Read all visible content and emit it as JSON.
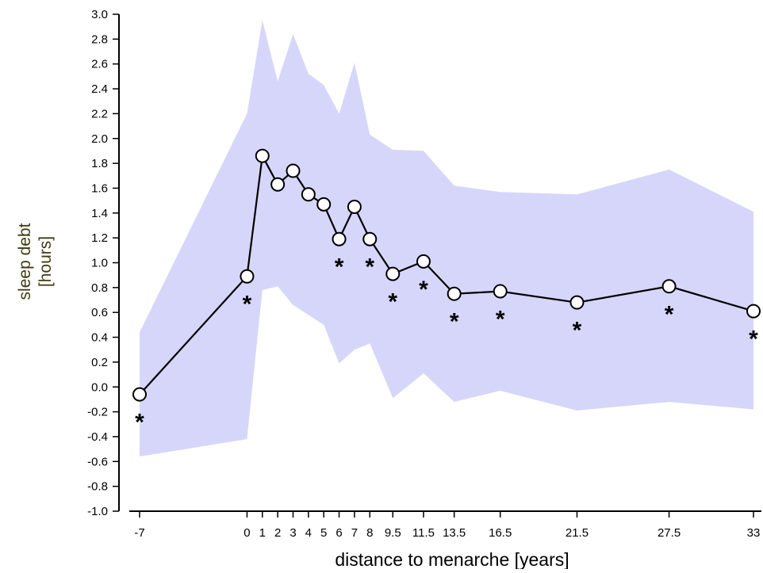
{
  "chart_data": {
    "type": "line",
    "title": "",
    "xlabel": "distance to menarche [years]",
    "ylabel_line1": "sleep debt",
    "ylabel_line2": "[hours]",
    "ylim": [
      -1.0,
      3.0
    ],
    "ytick_step": 0.2,
    "yticks": [
      "3.0",
      "2.8",
      "2.6",
      "2.4",
      "2.2",
      "2.0",
      "1.8",
      "1.6",
      "1.4",
      "1.2",
      "1.0",
      "0.8",
      "0.6",
      "0.4",
      "0.2",
      "0.0",
      "-0.2",
      "-0.4",
      "-0.6",
      "-0.8",
      "-1.0"
    ],
    "xticks": [
      "-7",
      "0",
      "1",
      "2",
      "3",
      "4",
      "5",
      "6",
      "7",
      "8",
      "9.5",
      "11.5",
      "13.5",
      "16.5",
      "21.5",
      "27.5",
      "33"
    ],
    "grid": false,
    "band_color": "#d6d6fb",
    "line_color": "#000000",
    "marker_fill": "#ffffff",
    "significance_marker": "*",
    "series": [
      {
        "points": [
          {
            "x": "-7",
            "y": -0.06,
            "band": [
              -0.56,
              0.44
            ],
            "sig": true
          },
          {
            "x": "0",
            "y": 0.89,
            "band": [
              -0.42,
              2.2
            ],
            "sig": true
          },
          {
            "x": "1",
            "y": 1.86,
            "band": [
              0.78,
              2.95
            ],
            "sig": false
          },
          {
            "x": "2",
            "y": 1.63,
            "band": [
              0.81,
              2.46
            ],
            "sig": false
          },
          {
            "x": "3",
            "y": 1.74,
            "band": [
              0.66,
              2.84
            ],
            "sig": false
          },
          {
            "x": "4",
            "y": 1.55,
            "band": [
              0.58,
              2.52
            ],
            "sig": false
          },
          {
            "x": "5",
            "y": 1.47,
            "band": [
              0.5,
              2.43
            ],
            "sig": false
          },
          {
            "x": "6",
            "y": 1.19,
            "band": [
              0.19,
              2.2
            ],
            "sig": true
          },
          {
            "x": "7",
            "y": 1.45,
            "band": [
              0.3,
              2.61
            ],
            "sig": false
          },
          {
            "x": "8",
            "y": 1.19,
            "band": [
              0.35,
              2.03
            ],
            "sig": true
          },
          {
            "x": "9.5",
            "y": 0.91,
            "band": [
              -0.09,
              1.91
            ],
            "sig": true
          },
          {
            "x": "11.5",
            "y": 1.01,
            "band": [
              0.11,
              1.9
            ],
            "sig": true
          },
          {
            "x": "13.5",
            "y": 0.75,
            "band": [
              -0.12,
              1.62
            ],
            "sig": true
          },
          {
            "x": "16.5",
            "y": 0.77,
            "band": [
              -0.03,
              1.57
            ],
            "sig": true
          },
          {
            "x": "21.5",
            "y": 0.68,
            "band": [
              -0.19,
              1.55
            ],
            "sig": true
          },
          {
            "x": "27.5",
            "y": 0.81,
            "band": [
              -0.12,
              1.75
            ],
            "sig": true
          },
          {
            "x": "33",
            "y": 0.61,
            "band": [
              -0.18,
              1.41
            ],
            "sig": true
          }
        ]
      }
    ]
  }
}
